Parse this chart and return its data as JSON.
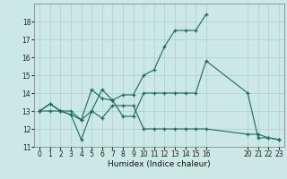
{
  "title": "",
  "xlabel": "Humidex (Indice chaleur)",
  "ylabel": "",
  "background_color": "#cce8e4",
  "grid_color": "#aad0cc",
  "line_color": "#1a6b5a",
  "xlim": [
    -0.5,
    23.5
  ],
  "ylim": [
    11,
    19
  ],
  "xticks": [
    0,
    1,
    2,
    3,
    4,
    5,
    6,
    7,
    8,
    9,
    10,
    11,
    12,
    13,
    14,
    15,
    16,
    20,
    21,
    22,
    23
  ],
  "xtick_labels": [
    "0",
    "1",
    "2",
    "3",
    "4",
    "5",
    "6",
    "7",
    "8",
    "9",
    "10",
    "11",
    "12",
    "13",
    "14",
    "15",
    "16",
    "20",
    "21",
    "22",
    "23"
  ],
  "yticks": [
    11,
    12,
    13,
    14,
    15,
    16,
    17,
    18
  ],
  "ytick_labels": [
    "11",
    "12",
    "13",
    "14",
    "15",
    "16",
    "17",
    "18"
  ],
  "lines": [
    {
      "x": [
        0,
        1,
        2,
        3,
        4,
        5,
        6,
        7,
        8,
        9,
        10,
        11,
        12,
        13,
        14,
        15,
        16
      ],
      "y": [
        13,
        13.4,
        13,
        13,
        12.5,
        14.2,
        13.7,
        13.6,
        13.9,
        13.9,
        15.0,
        15.3,
        16.6,
        17.5,
        17.5,
        17.5,
        18.4
      ]
    },
    {
      "x": [
        0,
        1,
        2,
        3,
        4,
        5,
        6,
        7,
        8,
        9,
        10,
        11,
        12,
        13,
        14,
        15,
        16,
        20,
        21,
        22,
        23
      ],
      "y": [
        13,
        13.4,
        13,
        12.8,
        12.5,
        13.0,
        14.2,
        13.6,
        12.7,
        12.7,
        14.0,
        14.0,
        14.0,
        14.0,
        14.0,
        14.0,
        15.8,
        14.0,
        11.5,
        11.5,
        11.4
      ]
    },
    {
      "x": [
        0,
        1,
        2,
        3,
        4,
        5,
        6,
        7,
        8,
        9,
        10,
        11,
        12,
        13,
        14,
        15,
        16,
        20,
        21,
        22,
        23
      ],
      "y": [
        13,
        13,
        13,
        12.8,
        11.4,
        13.0,
        12.6,
        13.3,
        13.3,
        13.3,
        12.0,
        12.0,
        12.0,
        12.0,
        12.0,
        12.0,
        12.0,
        11.7,
        11.7,
        11.5,
        11.4
      ]
    }
  ]
}
